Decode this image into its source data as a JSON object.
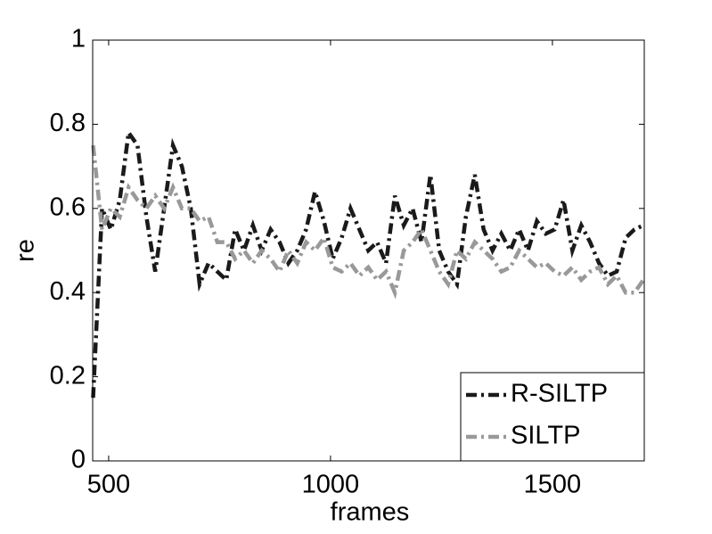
{
  "chart_data": {
    "type": "line",
    "xlabel": "frames",
    "ylabel": "re",
    "x": [
      465,
      485,
      505,
      525,
      545,
      565,
      585,
      605,
      625,
      645,
      665,
      685,
      705,
      725,
      745,
      765,
      785,
      805,
      825,
      845,
      865,
      885,
      905,
      925,
      945,
      965,
      985,
      1005,
      1025,
      1045,
      1065,
      1085,
      1105,
      1125,
      1145,
      1165,
      1185,
      1205,
      1225,
      1245,
      1265,
      1285,
      1305,
      1325,
      1345,
      1365,
      1385,
      1405,
      1425,
      1445,
      1465,
      1485,
      1505,
      1525,
      1545,
      1565,
      1585,
      1605,
      1625,
      1645,
      1665,
      1685,
      1705
    ],
    "series": [
      {
        "name": "R-SILTP",
        "color": "#1a1a1a",
        "values": [
          0.15,
          0.6,
          0.55,
          0.62,
          0.78,
          0.75,
          0.58,
          0.45,
          0.6,
          0.75,
          0.7,
          0.6,
          0.42,
          0.47,
          0.45,
          0.43,
          0.55,
          0.5,
          0.56,
          0.5,
          0.55,
          0.52,
          0.47,
          0.5,
          0.55,
          0.64,
          0.57,
          0.48,
          0.53,
          0.6,
          0.55,
          0.5,
          0.52,
          0.47,
          0.63,
          0.56,
          0.6,
          0.52,
          0.68,
          0.5,
          0.45,
          0.42,
          0.58,
          0.68,
          0.55,
          0.5,
          0.54,
          0.5,
          0.55,
          0.5,
          0.57,
          0.54,
          0.55,
          0.62,
          0.5,
          0.56,
          0.52,
          0.47,
          0.44,
          0.45,
          0.53,
          0.55,
          0.56
        ]
      },
      {
        "name": "SILTP",
        "color": "#999999",
        "values": [
          0.75,
          0.55,
          0.6,
          0.58,
          0.65,
          0.62,
          0.6,
          0.63,
          0.6,
          0.65,
          0.6,
          0.6,
          0.57,
          0.58,
          0.52,
          0.52,
          0.48,
          0.5,
          0.47,
          0.5,
          0.48,
          0.45,
          0.5,
          0.47,
          0.52,
          0.5,
          0.53,
          0.46,
          0.45,
          0.47,
          0.44,
          0.46,
          0.43,
          0.45,
          0.4,
          0.5,
          0.52,
          0.55,
          0.5,
          0.45,
          0.42,
          0.5,
          0.48,
          0.52,
          0.5,
          0.48,
          0.45,
          0.46,
          0.5,
          0.48,
          0.46,
          0.47,
          0.45,
          0.44,
          0.46,
          0.43,
          0.45,
          0.46,
          0.42,
          0.44,
          0.4,
          0.4,
          0.43
        ]
      }
    ],
    "xlim": [
      464,
      1707
    ],
    "ylim": [
      0,
      1
    ],
    "xticks": [
      500,
      1000,
      1500
    ],
    "yticks": [
      0,
      0.2,
      0.4,
      0.6,
      0.8,
      1
    ],
    "legend": "lower right"
  }
}
